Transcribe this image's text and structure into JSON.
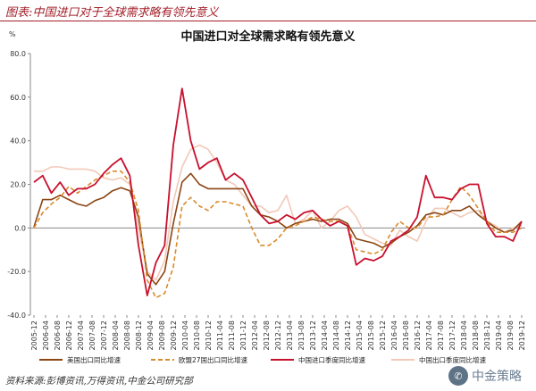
{
  "figure": {
    "caption": "图表:中国进口对于全球需求略有领先意义",
    "source": "资料来源:彭博资讯,万得资讯,中金公司研究部",
    "watermark_text": "中金策略",
    "watermark_logo_icon": "wechat-icon"
  },
  "chart_data": {
    "type": "line",
    "title": "中国进口对全球需求略有领先意义",
    "ylabel": "%",
    "ylim": [
      -40,
      80
    ],
    "yticks": [
      "80.0",
      "60.0",
      "40.0",
      "20.0",
      "0.0",
      "-20.0",
      "-40.0"
    ],
    "grid": false,
    "legend_position": "bottom",
    "x_tick_labels": [
      "2005-12",
      "2006-04",
      "2006-08",
      "2006-12",
      "2007-04",
      "2007-08",
      "2007-12",
      "2008-04",
      "2008-08",
      "2008-12",
      "2009-04",
      "2009-08",
      "2009-12",
      "2010-04",
      "2010-08",
      "2010-12",
      "2011-04",
      "2011-08",
      "2011-12",
      "2012-04",
      "2012-08",
      "2012-12",
      "2013-04",
      "2013-08",
      "2013-12",
      "2014-04",
      "2014-08",
      "2014-12",
      "2015-04",
      "2015-08",
      "2015-12",
      "2016-04",
      "2016-08",
      "2016-12",
      "2017-04",
      "2017-08",
      "2017-12",
      "2018-04",
      "2018-08",
      "2018-12",
      "2019-04",
      "2019-08",
      "2019-12"
    ],
    "x": [
      "2005-12",
      "2006-03",
      "2006-06",
      "2006-09",
      "2006-12",
      "2007-03",
      "2007-06",
      "2007-09",
      "2007-12",
      "2008-03",
      "2008-06",
      "2008-09",
      "2008-12",
      "2009-03",
      "2009-06",
      "2009-09",
      "2009-12",
      "2010-03",
      "2010-06",
      "2010-09",
      "2010-12",
      "2011-03",
      "2011-06",
      "2011-09",
      "2011-12",
      "2012-03",
      "2012-06",
      "2012-09",
      "2012-12",
      "2013-03",
      "2013-06",
      "2013-09",
      "2013-12",
      "2014-03",
      "2014-06",
      "2014-09",
      "2014-12",
      "2015-03",
      "2015-06",
      "2015-09",
      "2015-12",
      "2016-03",
      "2016-06",
      "2016-09",
      "2016-12",
      "2017-03",
      "2017-06",
      "2017-09",
      "2017-12",
      "2018-03",
      "2018-06",
      "2018-09",
      "2018-12",
      "2019-03",
      "2019-06",
      "2019-09",
      "2019-12"
    ],
    "series": [
      {
        "name": "美国出口同比增速",
        "color": "#8b4513",
        "dash": "solid",
        "values": [
          0.5,
          13,
          13,
          15,
          13,
          11,
          10,
          12.5,
          14,
          17,
          18.5,
          17,
          5,
          -21,
          -26,
          -20,
          2,
          21,
          25,
          20,
          18,
          18,
          18,
          18,
          18,
          10,
          6,
          5,
          3,
          0,
          2,
          3,
          4,
          3,
          4,
          4,
          2,
          -5,
          -6,
          -7,
          -9,
          -7,
          -4,
          -2,
          1,
          6,
          7,
          6,
          8,
          8,
          10,
          6,
          3,
          0,
          -2,
          -1,
          3
        ]
      },
      {
        "name": "欧盟27国出口同比增速",
        "color": "#d98a2c",
        "dash": "dashed",
        "values": [
          0,
          7,
          11,
          14,
          19,
          16,
          19,
          22,
          24,
          26,
          26,
          21,
          8,
          -24,
          -32,
          -30,
          -18,
          10,
          14,
          10,
          8,
          12,
          12,
          11,
          10,
          0,
          -8,
          -8,
          -5,
          0,
          1,
          3,
          5,
          4,
          3,
          3,
          1,
          -10,
          -11,
          -12,
          -10,
          -2,
          3,
          0,
          0,
          5,
          5,
          6,
          13,
          19,
          15,
          9,
          3,
          -2,
          -2,
          -2,
          0
        ]
      },
      {
        "name": "中国进口季度同比增速",
        "color": "#c8102e",
        "dash": "solid",
        "values": [
          21,
          24,
          16,
          21,
          15,
          18,
          18,
          20,
          25,
          29,
          32,
          24,
          -8,
          -31,
          -16,
          -8,
          38,
          64,
          40,
          27,
          30,
          32,
          22,
          25,
          22,
          14,
          6,
          2,
          3,
          6,
          4,
          7,
          8,
          4,
          1,
          3,
          1,
          -17,
          -14,
          -15,
          -13,
          -6,
          -4,
          -1,
          5,
          24,
          14,
          14,
          13,
          18,
          20,
          20,
          2,
          -4,
          -4,
          -6,
          3
        ]
      },
      {
        "name": "中国出口季度同比增速",
        "color": "#f2c9b8",
        "dash": "solid",
        "values": [
          26,
          26,
          28,
          28,
          27,
          27,
          27,
          26,
          23,
          22,
          23,
          20,
          0,
          -20,
          -24,
          -15,
          12,
          28,
          36,
          38,
          36,
          30,
          22,
          20,
          15,
          10,
          10,
          7,
          8,
          15,
          2,
          4,
          8,
          0,
          3,
          8,
          10,
          5,
          -3,
          -5,
          -7,
          -8,
          -1,
          -4,
          -6,
          3,
          9,
          9,
          7,
          5,
          7,
          8,
          3,
          1,
          -2,
          0,
          1
        ]
      }
    ]
  }
}
